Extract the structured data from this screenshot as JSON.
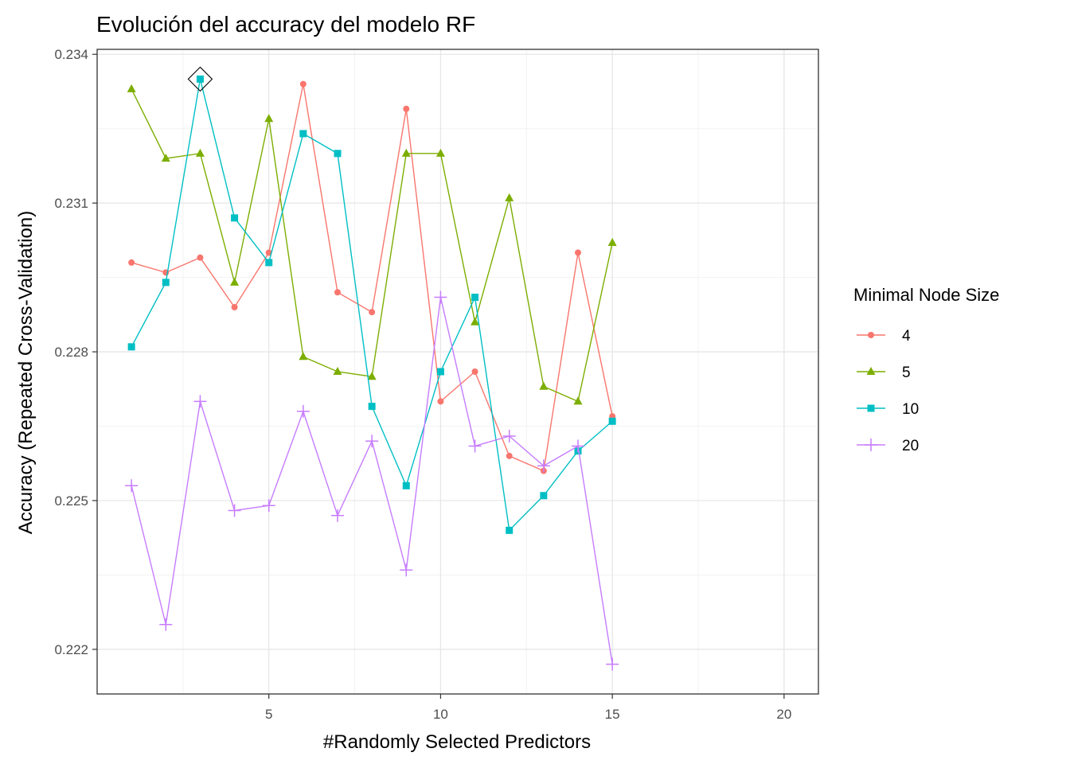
{
  "chart_data": {
    "type": "line",
    "title": "Evolución del accuracy del modelo RF",
    "xlabel": "#Randomly Selected Predictors",
    "ylabel": "Accuracy (Repeated Cross-Validation)",
    "xlim": [
      0,
      21
    ],
    "ylim": [
      0.2211,
      0.2341
    ],
    "x_ticks": [
      5,
      10,
      15,
      20
    ],
    "x_tick_labels": [
      "5",
      "10",
      "15",
      "20"
    ],
    "y_ticks": [
      0.222,
      0.225,
      0.228,
      0.231,
      0.234
    ],
    "y_tick_labels": [
      "0.222",
      "0.225",
      "0.228",
      "0.231",
      "0.234"
    ],
    "grid": true,
    "legend": {
      "title": "Minimal Node Size",
      "position": "right"
    },
    "x": [
      1,
      2,
      3,
      4,
      5,
      6,
      7,
      8,
      9,
      10,
      11,
      12,
      13,
      14,
      15
    ],
    "series": [
      {
        "name": "4",
        "color": "#F8766D",
        "marker": "circle",
        "values": [
          0.2298,
          0.2296,
          0.2299,
          0.2289,
          0.23,
          0.2334,
          0.2292,
          0.2288,
          0.2329,
          0.227,
          0.2276,
          0.2259,
          0.2256,
          0.23,
          0.2267
        ]
      },
      {
        "name": "5",
        "color": "#7CAE00",
        "marker": "triangle",
        "values": [
          0.2333,
          0.2319,
          0.232,
          0.2294,
          0.2327,
          0.2279,
          0.2276,
          0.2275,
          0.232,
          0.232,
          0.2286,
          0.2311,
          0.2273,
          0.227,
          0.2302
        ]
      },
      {
        "name": "10",
        "color": "#00BFC4",
        "marker": "square",
        "values": [
          0.2281,
          0.2294,
          0.2335,
          0.2307,
          0.2298,
          0.2324,
          0.232,
          0.2269,
          0.2253,
          0.2276,
          0.2291,
          0.2244,
          0.2251,
          0.226,
          0.2266
        ]
      },
      {
        "name": "20",
        "color": "#C77CFF",
        "marker": "plus",
        "values": [
          0.2253,
          0.2225,
          0.227,
          0.2248,
          0.2249,
          0.2268,
          0.2247,
          0.2262,
          0.2236,
          0.2291,
          0.2261,
          0.2263,
          0.2257,
          0.2261,
          0.2217
        ]
      }
    ],
    "highlight": {
      "series": "10",
      "x": 3,
      "value": 0.2335,
      "marker": "diamond"
    }
  }
}
